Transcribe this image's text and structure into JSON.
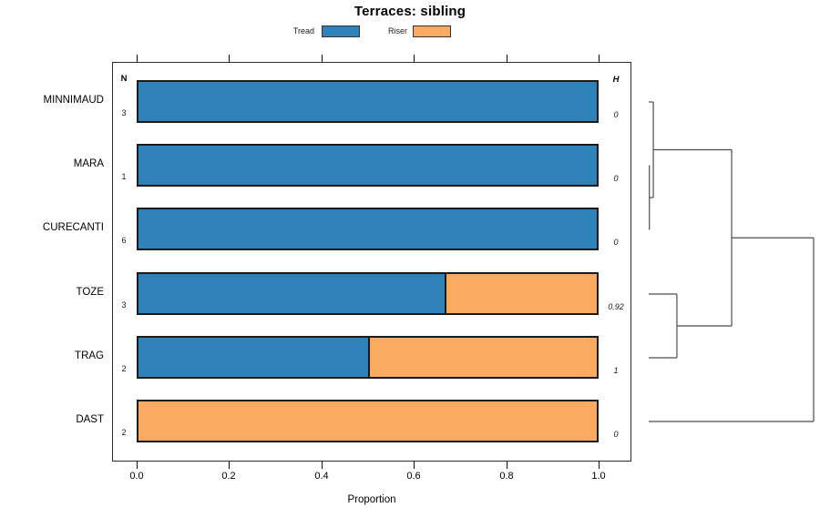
{
  "title": "Terraces: sibling",
  "legend": {
    "items": [
      {
        "label": "Tread",
        "color": "#2e81b9"
      },
      {
        "label": "Riser",
        "color": "#fbab61"
      }
    ]
  },
  "chart_data": {
    "type": "bar",
    "orientation": "horizontal",
    "stacked": true,
    "title": "Terraces: sibling",
    "categories": [
      "MINNIMAUD",
      "MARA",
      "CURECANTI",
      "TOZE",
      "TRAG",
      "DAST"
    ],
    "series": [
      {
        "name": "Tread",
        "color": "#2e81b9",
        "values": [
          1,
          1,
          1,
          0.667,
          0.5,
          0
        ]
      },
      {
        "name": "Riser",
        "color": "#fbab61",
        "values": [
          0,
          0,
          0,
          0.333,
          0.5,
          1
        ]
      }
    ],
    "columns": {
      "n_header": "N",
      "h_header": "H",
      "n_values": [
        "3",
        "1",
        "6",
        "3",
        "2",
        "2"
      ],
      "h_values": [
        "0",
        "0",
        "0",
        "0.92",
        "1",
        "0"
      ]
    },
    "xlabel": "Proportion",
    "xlim": [
      0,
      1
    ],
    "x_ticks": [
      "0.0",
      "0.2",
      "0.4",
      "0.6",
      "0.8",
      "1.0"
    ],
    "grid": false,
    "legend_position": "top",
    "dendrogram": {
      "leaves": [
        "MINNIMAUD",
        "MARA",
        "CURECANTI",
        "TOZE",
        "TRAG",
        "DAST"
      ],
      "merges": [
        {
          "a": "MARA",
          "b": "CURECANTI",
          "height": 0.004
        },
        {
          "a": "MINNIMAUD",
          "b": "@0",
          "height": 0.028
        },
        {
          "a": "TOZE",
          "b": "TRAG",
          "height": 0.171
        },
        {
          "a": "@1",
          "b": "@2",
          "height": 0.503
        },
        {
          "a": "@3",
          "b": "DAST",
          "height": 1.0
        }
      ]
    }
  },
  "colors": {
    "bar_border": "#1a1a1a",
    "box_border": "#2b2b2b",
    "axis": "#000000",
    "dendrogram_line": "#4d4d4d",
    "background": "#ffffff"
  }
}
